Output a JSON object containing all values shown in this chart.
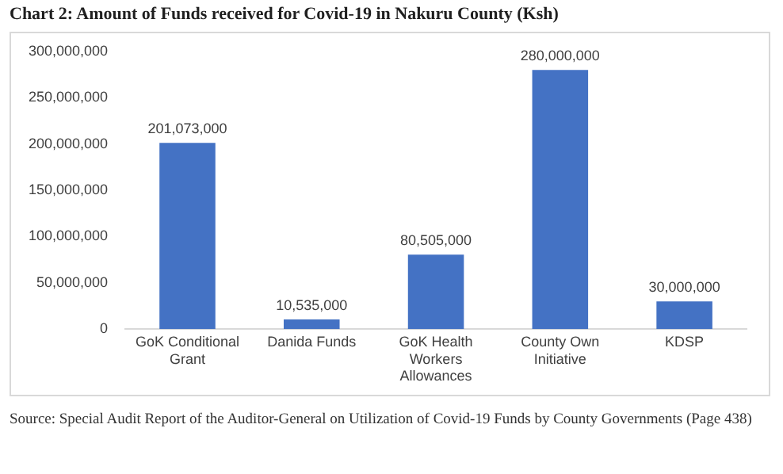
{
  "chart_data": {
    "type": "bar",
    "title": "Chart 2: Amount of Funds received for Covid-19 in Nakuru County (Ksh)",
    "categories": [
      "GoK Conditional Grant",
      "Danida Funds",
      "GoK Health Workers Allowances",
      "County Own Initiative",
      "KDSP"
    ],
    "values": [
      201073000,
      10535000,
      80505000,
      280000000,
      30000000
    ],
    "value_labels": [
      "201,073,000",
      "10,535,000",
      "80,505,000",
      "280,000,000",
      "30,000,000"
    ],
    "color": "#4472c4",
    "ylim": [
      0,
      300000000
    ],
    "yticks": [
      0,
      {
        "value": 50000000,
        "label": "50,000,000"
      },
      {
        "value": 100000000,
        "label": "100,000,000"
      },
      {
        "value": 150000000,
        "label": "150,000,000"
      },
      {
        "value": 200000000,
        "label": "200,000,000"
      },
      {
        "value": 250000000,
        "label": "250,000,000"
      },
      {
        "value": 300000000,
        "label": "300,000,000"
      }
    ],
    "grid": false,
    "legend": false,
    "annotations": [
      "Source: Special Audit Report of the Auditor-General on Utilization of Covid-19 Funds by County Governments (Page 438)"
    ]
  }
}
